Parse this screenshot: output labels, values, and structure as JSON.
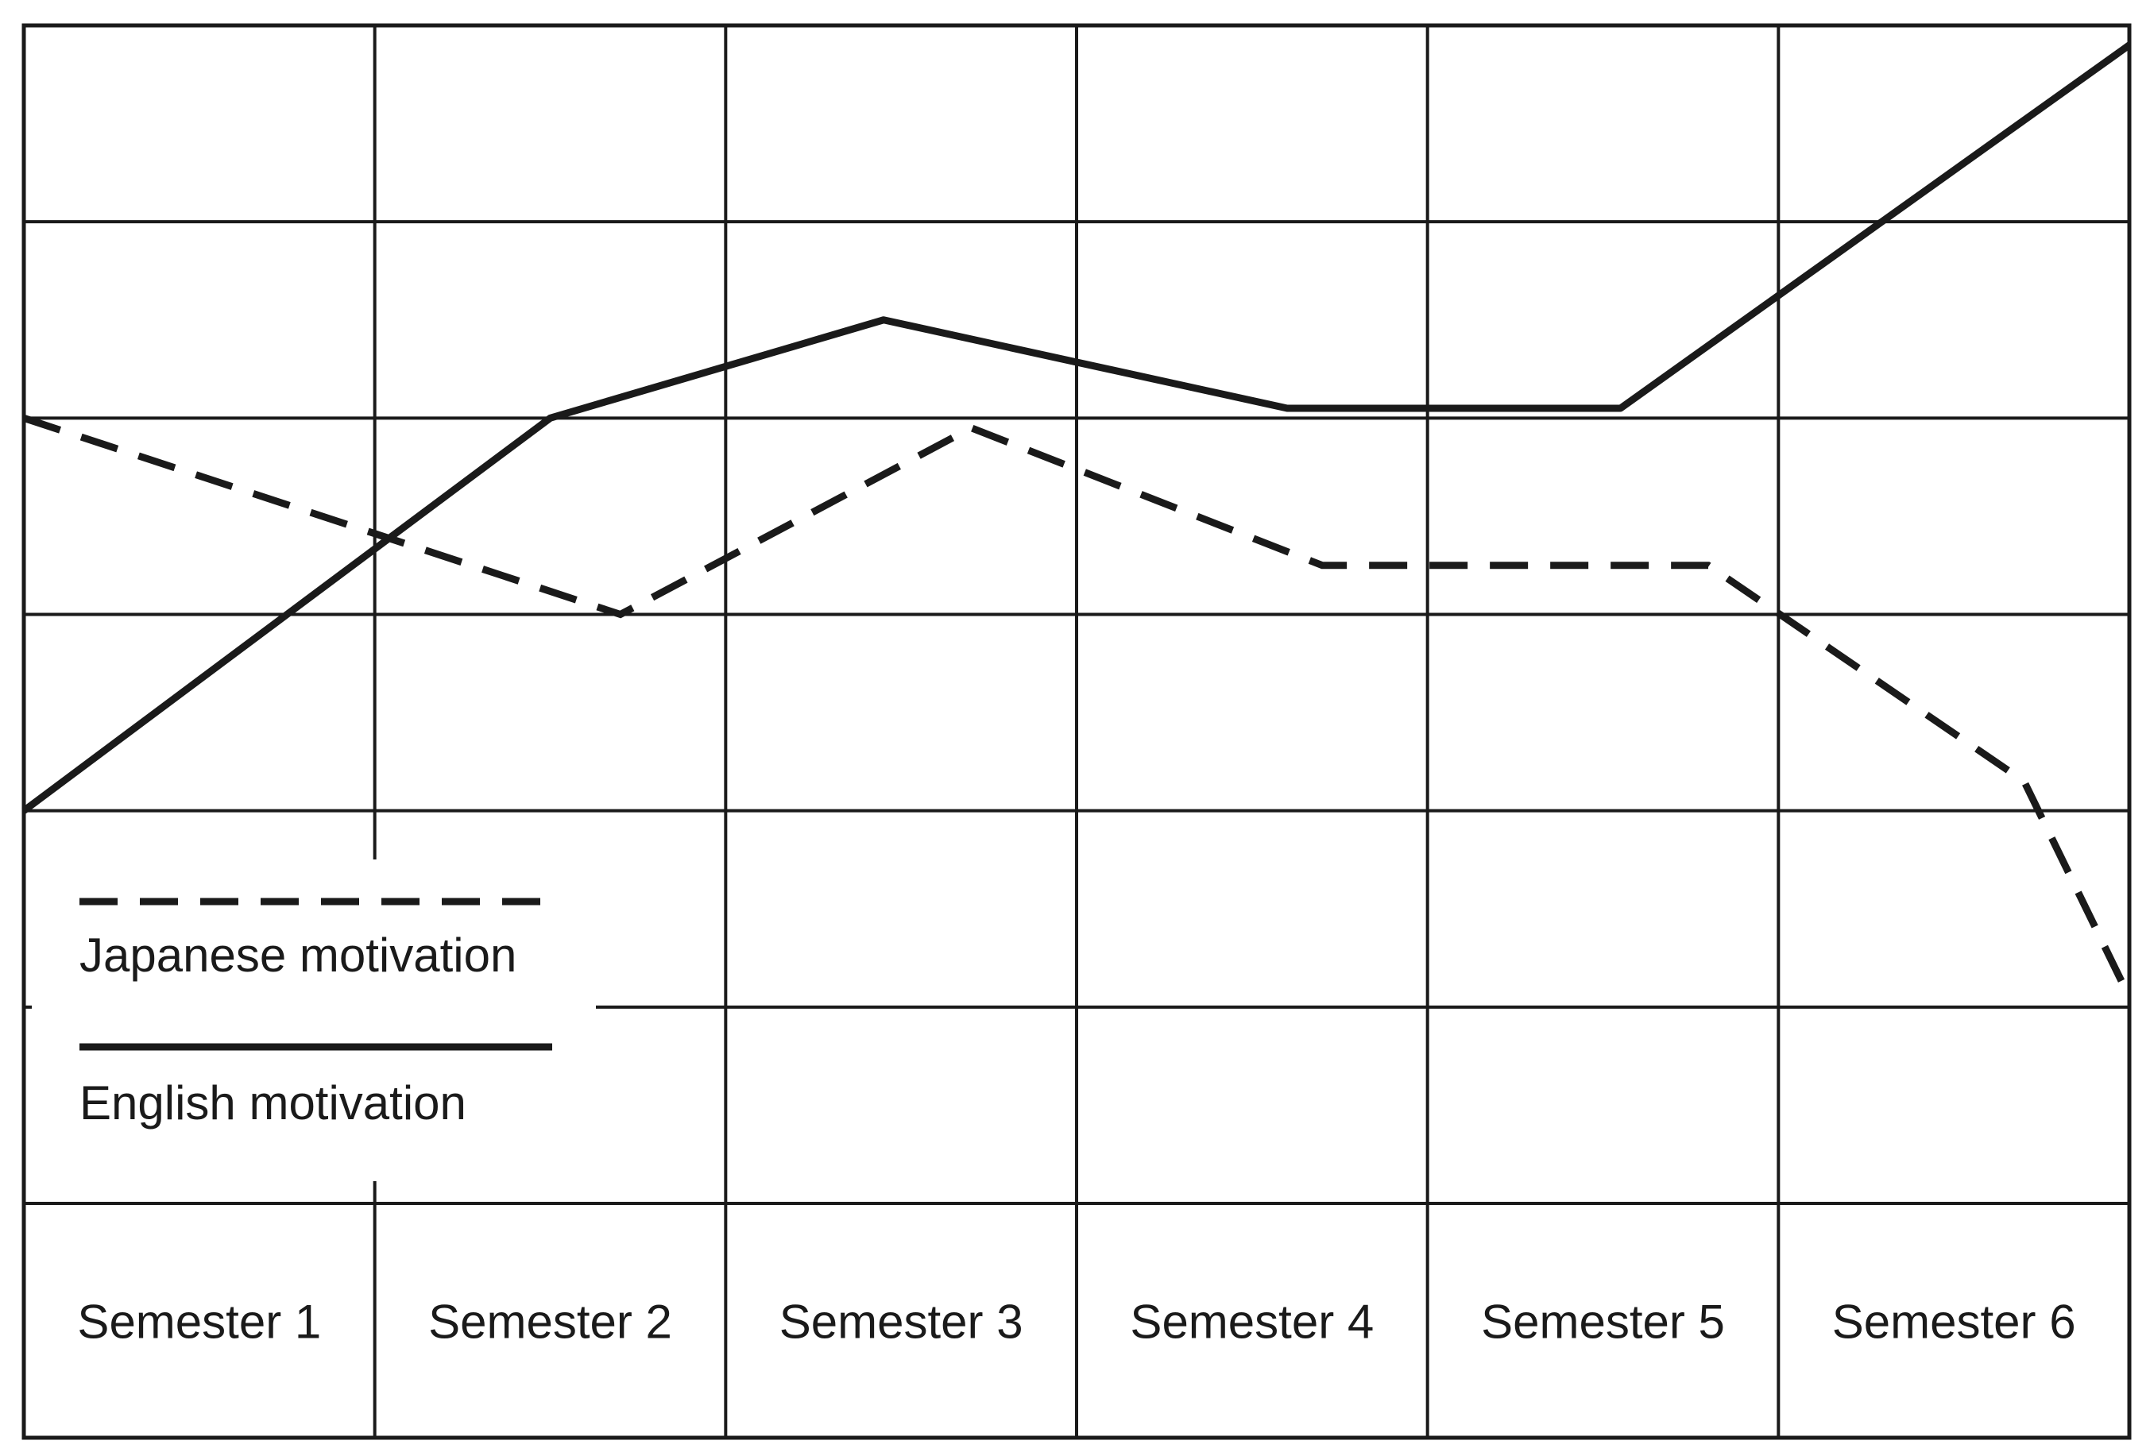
{
  "chart_data": {
    "type": "line",
    "title": "",
    "xlabel": "",
    "ylabel": "",
    "categories": [
      "Semester 1",
      "Semester 2",
      "Semester 3",
      "Semester 4",
      "Semester 5",
      "Semester 6"
    ],
    "ylim": [
      0,
      6
    ],
    "grid": true,
    "legend_position": "bottom-left",
    "series": [
      {
        "name": "Japanese motivation",
        "style": "dashed",
        "x": [
          0.0,
          1.7,
          2.7,
          3.7,
          4.8,
          5.7,
          6.0
        ],
        "values": [
          4.0,
          3.0,
          3.95,
          3.25,
          3.25,
          2.15,
          1.05
        ]
      },
      {
        "name": "English motivation",
        "style": "solid",
        "x": [
          0.0,
          1.5,
          2.45,
          3.6,
          4.55,
          6.0
        ],
        "values": [
          2.0,
          4.0,
          4.5,
          4.05,
          4.05,
          5.9
        ]
      }
    ]
  },
  "legend": {
    "japanese_label": "Japanese motivation",
    "english_label": "English motivation"
  }
}
